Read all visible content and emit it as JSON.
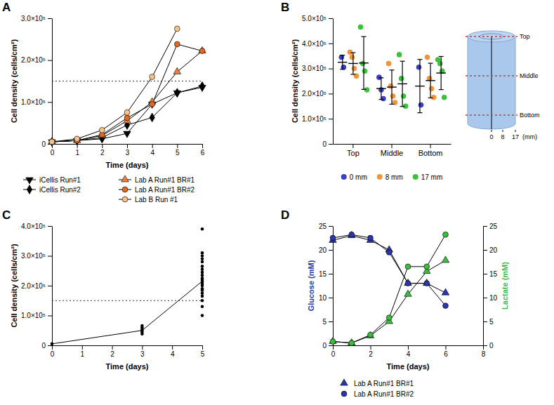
{
  "chart_data": [
    {
      "type": "line",
      "panel": "A",
      "x_label": "Time (days)",
      "y_label": "Cell density (cells/cm²)",
      "x": [
        0,
        1,
        2,
        3,
        4,
        5,
        6
      ],
      "xlim": [
        0,
        6
      ],
      "xticks": [
        0,
        1,
        2,
        3,
        4,
        5,
        6
      ],
      "ylim": [
        0,
        300000
      ],
      "yticks": [
        0,
        {
          "value": 100000,
          "label": "1.0×10⁵"
        },
        {
          "value": 200000,
          "label": "2.0×10⁵"
        },
        {
          "value": 300000,
          "label": "3.0×10⁵"
        }
      ],
      "threshold": 150000,
      "legend": "bottom",
      "series": [
        {
          "name": "iCellis Run#1",
          "color": "#000000",
          "marker": "triangle-down",
          "values": [
            5000,
            8000,
            12000,
            25000,
            95000,
            122000,
            135000
          ]
        },
        {
          "name": "iCellis Run#2",
          "color": "#000000",
          "marker": "diamond",
          "values": [
            5000,
            8000,
            15000,
            45000,
            63000,
            122000,
            138000
          ]
        },
        {
          "name": "Lab A Run#1 BR#1",
          "color": "#e8823f",
          "marker": "triangle",
          "values": [
            5000,
            8000,
            20000,
            55000,
            100000,
            172000,
            222000
          ]
        },
        {
          "name": "Lab A Run#1 BR#2",
          "color": "#e06b25",
          "marker": "circle",
          "values": [
            5000,
            8000,
            22000,
            62000,
            95000,
            238000,
            222000
          ]
        },
        {
          "name": "Lab B Run #1",
          "color": "#f7c28c",
          "marker": "circle",
          "values": [
            5000,
            12000,
            33000,
            75000,
            160000,
            275000,
            null
          ]
        }
      ]
    },
    {
      "type": "dot_plot",
      "panel": "B",
      "y_label": "Cell density (cells/cm²)",
      "categories": [
        "Top",
        "Middle",
        "Bottom"
      ],
      "ylim": [
        0,
        500000
      ],
      "yticks": [
        0,
        {
          "value": 100000,
          "label": "1.0×10⁵"
        },
        {
          "value": 200000,
          "label": "2.0×10⁵"
        },
        {
          "value": 300000,
          "label": "3.0×10⁵"
        },
        {
          "value": 400000,
          "label": "4.0×10⁵"
        },
        {
          "value": 500000,
          "label": "5.0×10⁵"
        }
      ],
      "legend": "bottom",
      "series": [
        {
          "name": "0 mm",
          "color": "#3a3fc4",
          "values": [
            [
              345000,
              305000
            ],
            [
              265000,
              215000,
              180000
            ],
            [
              305000,
              155000
            ]
          ],
          "mean": [
            325000,
            220000,
            230000
          ],
          "sd": [
            28000,
            43000,
            106000
          ]
        },
        {
          "name": "8 mm",
          "color": "#f0953e",
          "values": [
            [
              365000,
              345000,
              300000,
              270000
            ],
            [
              320000,
              230000,
              190000,
              165000
            ],
            [
              345000,
              260000,
              220000,
              185000
            ]
          ],
          "mean": [
            320000,
            226000,
            252000
          ],
          "sd": [
            43000,
            68000,
            69000
          ]
        },
        {
          "name": "17 mm",
          "color": "#3cc13c",
          "values": [
            [
              465000,
              320000,
              290000,
              215000
            ],
            [
              355000,
              260000,
              190000,
              150000
            ],
            [
              335000,
              320000,
              290000,
              185000
            ]
          ],
          "mean": [
            322000,
            239000,
            282000
          ],
          "sd": [
            105000,
            90000,
            66000
          ]
        }
      ],
      "diagram": {
        "levels": [
          "Top",
          "Middle",
          "Bottom"
        ],
        "radii": [
          0,
          8,
          17
        ],
        "radius_unit": "(mm)"
      }
    },
    {
      "type": "scatter",
      "panel": "C",
      "x_label": "Time (days)",
      "y_label": "Cell density (cells/cm²)",
      "xlim": [
        0,
        5
      ],
      "xticks": [
        0,
        1,
        2,
        3,
        4,
        5
      ],
      "ylim": [
        0,
        400000
      ],
      "yticks": [
        0,
        {
          "value": 100000,
          "label": "1.0×10⁵"
        },
        {
          "value": 200000,
          "label": "2.0×10⁵"
        },
        {
          "value": 300000,
          "label": "3.0×10⁵"
        },
        {
          "value": 400000,
          "label": "4.0×10⁵"
        }
      ],
      "threshold": 150000,
      "series": [
        {
          "type": "scatter",
          "marker": "circle",
          "color": "#000000",
          "x": [
            0,
            3,
            3,
            3,
            3,
            3,
            3,
            5,
            5,
            5,
            5,
            5,
            5,
            5,
            5,
            5,
            5,
            5,
            5,
            5,
            5,
            5,
            5,
            5,
            5,
            5,
            5,
            5,
            5
          ],
          "values": [
            5000,
            38000,
            45000,
            50000,
            55000,
            60000,
            66000,
            100000,
            130000,
            150000,
            165000,
            175000,
            185000,
            190000,
            200000,
            205000,
            210000,
            215000,
            220000,
            225000,
            235000,
            245000,
            255000,
            265000,
            280000,
            290000,
            300000,
            310000,
            390000
          ]
        },
        {
          "type": "line",
          "marker": "none",
          "color": "#000000",
          "x": [
            0,
            3,
            5
          ],
          "values": [
            5000,
            50000,
            215000
          ]
        }
      ]
    },
    {
      "type": "line",
      "panel": "D",
      "x_label": "Time (days)",
      "y_label": "Glucose (mM)",
      "y2_label": "Lactate (mM)",
      "x": [
        0,
        1,
        2,
        3,
        4,
        5,
        6
      ],
      "xlim": [
        0,
        8
      ],
      "xticks": [
        0,
        2,
        4,
        6,
        8
      ],
      "ylim": [
        0,
        25
      ],
      "yticks": [
        0,
        5,
        10,
        15,
        20,
        25
      ],
      "y2lim": [
        0,
        25
      ],
      "y2ticks": [
        0,
        5,
        10,
        15,
        20,
        25
      ],
      "legend": "bottom",
      "series": [
        {
          "name": "Lab A Run#1 BR#1",
          "color": "#2b36a8",
          "marker": "triangle",
          "values": [
            22.0,
            23.0,
            22.0,
            20.0,
            13.0,
            13.0,
            11.0
          ]
        },
        {
          "name": "Lab A Run#1 BR#2",
          "color": "#2b36a8",
          "marker": "circle",
          "values": [
            22.5,
            23.2,
            22.5,
            19.5,
            13.0,
            13.0,
            8.3
          ]
        },
        {
          "name": "Lab A Run#1 BR#1",
          "color": "#3dbb3d",
          "marker": "triangle",
          "axis": "y2",
          "values": [
            0.8,
            0.5,
            2.0,
            5.0,
            10.7,
            15.5,
            17.8
          ]
        },
        {
          "name": "Lab A Run#1 BR#2",
          "color": "#3dbb3d",
          "marker": "circle",
          "axis": "y2",
          "values": [
            0.8,
            0.5,
            2.2,
            5.8,
            16.5,
            16.5,
            23.2
          ]
        }
      ]
    }
  ]
}
